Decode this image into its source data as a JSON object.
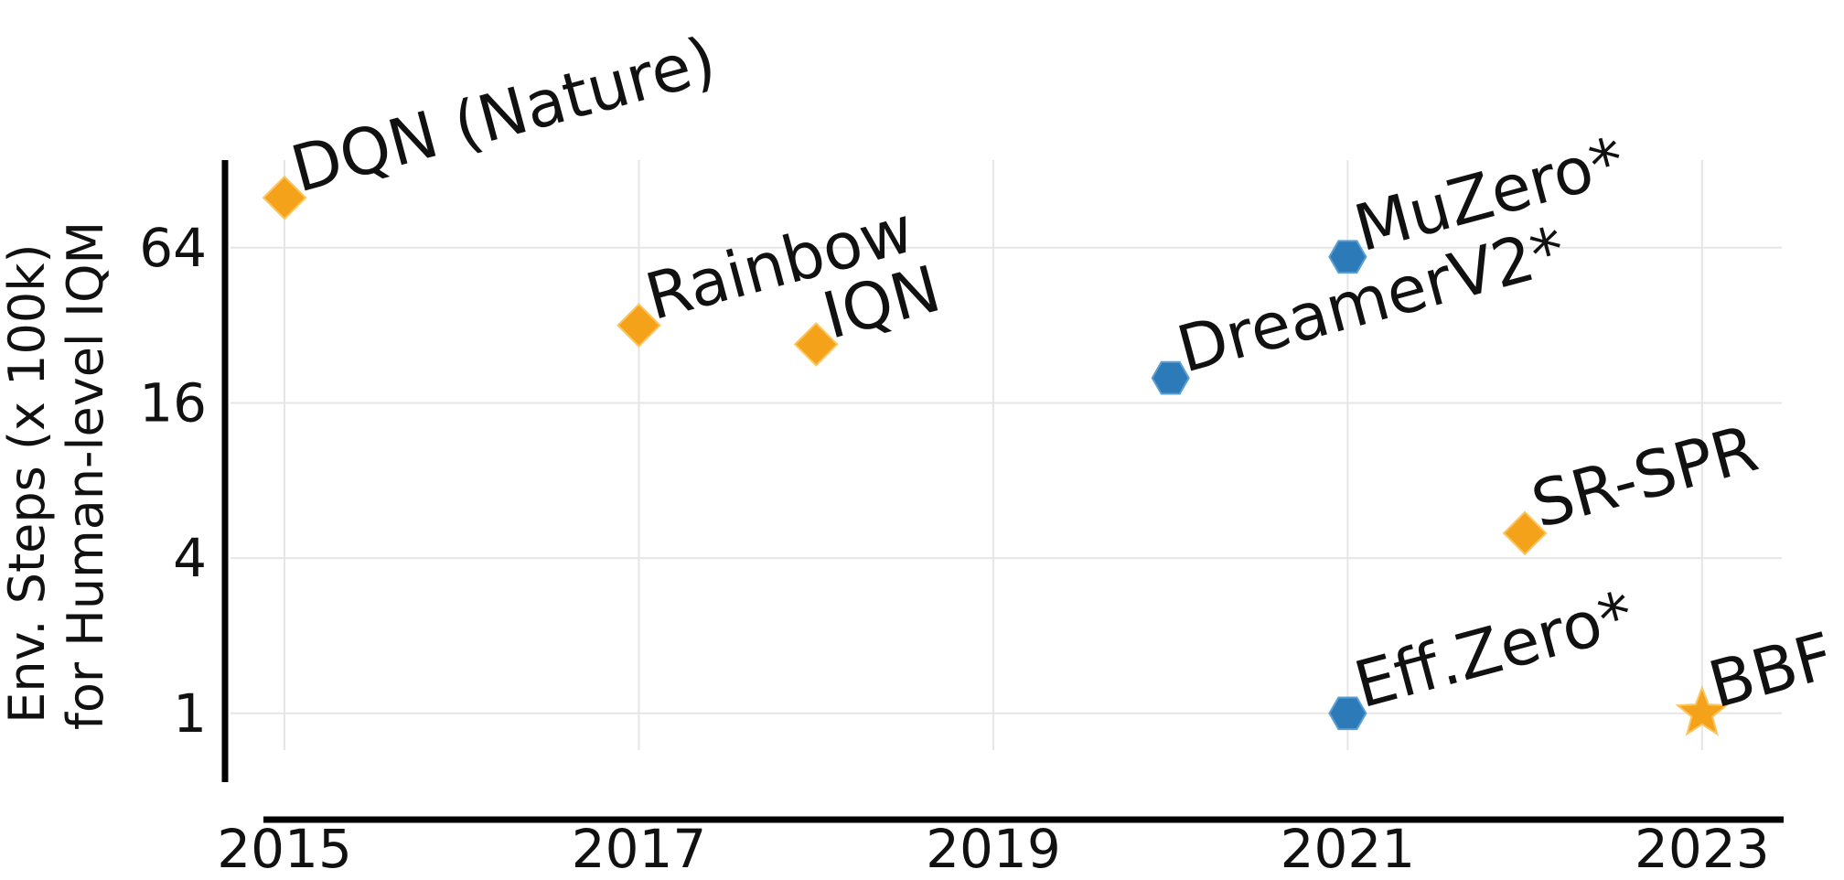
{
  "chart_data": {
    "type": "scatter",
    "title": "",
    "xlabel": "",
    "ylabel_lines": [
      "Env. Steps (x 100k)",
      "for Human-level IQM"
    ],
    "y_scale": "log2",
    "xlim": [
      2014.85,
      2023.45
    ],
    "ylim": [
      0.72,
      140
    ],
    "x_ticks": [
      2015,
      2017,
      2019,
      2021,
      2023
    ],
    "x_tick_labels": [
      "2015",
      "2017",
      "2019",
      "2021",
      "2023"
    ],
    "y_ticks": [
      1,
      4,
      16,
      64
    ],
    "y_tick_labels": [
      "1",
      "4",
      "16",
      "64"
    ],
    "grid": true,
    "colors": {
      "orange": "#f5a21b",
      "blue": "#2c7bb8"
    },
    "points": [
      {
        "label": "DQN (Nature)",
        "x": 2015,
        "y": 100,
        "marker": "diamond",
        "color": "#f5a21b"
      },
      {
        "label": "Rainbow",
        "x": 2017,
        "y": 32,
        "marker": "diamond",
        "color": "#f5a21b"
      },
      {
        "label": "IQN",
        "x": 2018,
        "y": 27,
        "marker": "diamond",
        "color": "#f5a21b"
      },
      {
        "label": "DreamerV2*",
        "x": 2020,
        "y": 20,
        "marker": "hexagon",
        "color": "#2c7bb8"
      },
      {
        "label": "MuZero*",
        "x": 2021,
        "y": 59,
        "marker": "hexagon",
        "color": "#2c7bb8"
      },
      {
        "label": "SR-SPR",
        "x": 2022,
        "y": 5,
        "marker": "diamond",
        "color": "#f5a21b"
      },
      {
        "label": "Eff.Zero*",
        "x": 2021,
        "y": 1,
        "marker": "hexagon",
        "color": "#2c7bb8"
      },
      {
        "label": "BBF",
        "x": 2023,
        "y": 1,
        "marker": "star",
        "color": "#f5a21b"
      }
    ]
  }
}
